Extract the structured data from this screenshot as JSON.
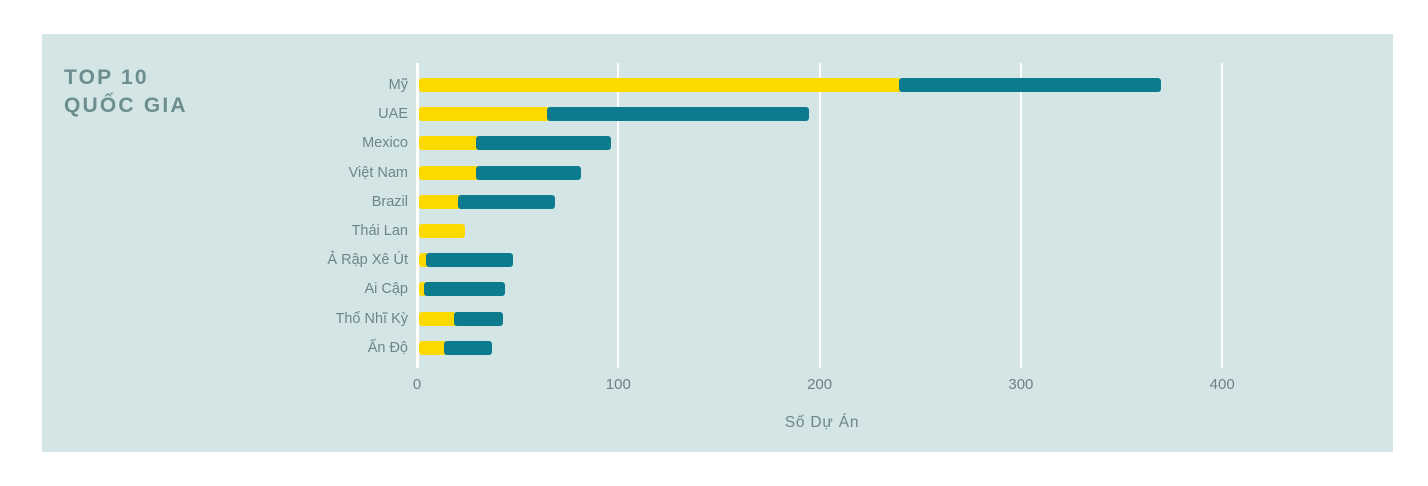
{
  "chart": {
    "title_line1": "TOP 10",
    "title_line2": "QUỐC GIA"
  },
  "chart_data": {
    "type": "bar",
    "orientation": "horizontal",
    "stacked": true,
    "title": "TOP 10 QUỐC GIA",
    "xlabel": "Số Dự Án",
    "ylabel": "",
    "xticks": [
      0,
      100,
      200,
      300,
      400
    ],
    "xlim": [
      0,
      450
    ],
    "grid": true,
    "legend": false,
    "categories": [
      "Mỹ",
      "UAE",
      "Mexico",
      "Việt Nam",
      "Brazil",
      "Thái Lan",
      "Ả Rập Xê Út",
      "Ai Cập",
      "Thổ Nhĩ Kỳ",
      "Ấn Độ"
    ],
    "series": [
      {
        "name": "yellow",
        "color": "#fcda00",
        "values": [
          240,
          65,
          30,
          30,
          21,
          23,
          5,
          4,
          19,
          14
        ]
      },
      {
        "name": "teal",
        "color": "#0c7b8e",
        "values": [
          130,
          130,
          67,
          52,
          48,
          0,
          43,
          40,
          24,
          24
        ]
      }
    ],
    "totals": [
      370,
      195,
      97,
      82,
      69,
      23,
      48,
      44,
      43,
      38
    ]
  },
  "colors": {
    "page_background": "#ffffff",
    "card_background": "#d3e5e5",
    "title_text": "#6d8e91",
    "label_text": "#6d8689",
    "tick_text": "#6f8285",
    "gridline": "#ffffff",
    "bar_yellow": "#fcda00",
    "bar_teal": "#0c7b8e"
  }
}
